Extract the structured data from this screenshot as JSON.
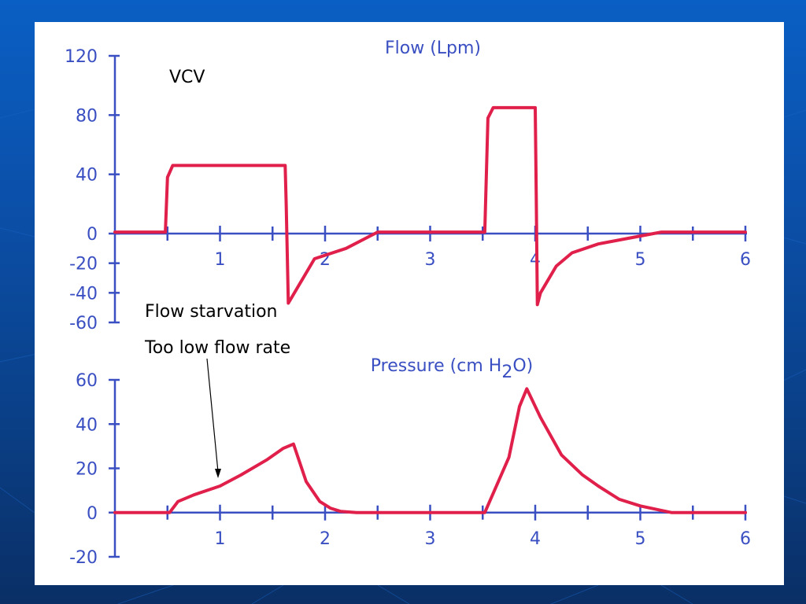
{
  "annotations": {
    "mode": "VCV",
    "line1": "Flow starvation",
    "line2": "Too low flow rate"
  },
  "colors": {
    "axis": "#3a4fc2",
    "series": "#e0204a",
    "annotation": "#000000",
    "panel": "#ffffff",
    "background": "#0b4fa8"
  },
  "chart_data": [
    {
      "type": "line",
      "title": "Flow (Lpm)",
      "xlim": [
        0,
        6
      ],
      "ylim": [
        -60,
        120
      ],
      "x_ticks": [
        1,
        2,
        3,
        4,
        5,
        6
      ],
      "y_ticks": [
        120,
        80,
        40,
        0,
        -20,
        -40,
        -60
      ],
      "series": [
        {
          "x": [
            0,
            0.48,
            0.5,
            0.55,
            1.62,
            1.63,
            1.65,
            1.9,
            2.2,
            2.5,
            3.5,
            3.52,
            3.55,
            3.6,
            4.0,
            4.01,
            4.02,
            4.05,
            4.2,
            4.35,
            4.6,
            4.9,
            5.2,
            6.0
          ],
          "y": [
            1,
            1,
            38,
            46,
            46,
            20,
            -47,
            -17,
            -10,
            1,
            1,
            1,
            78,
            85,
            85,
            25,
            -48,
            -40,
            -22,
            -13,
            -7,
            -3,
            1,
            1
          ]
        }
      ]
    },
    {
      "type": "line",
      "title": "Pressure (cm H2O)",
      "title_parts": {
        "prefix": "Pressure (cm H",
        "sub": "2",
        "suffix": "O)"
      },
      "xlim": [
        0,
        6
      ],
      "ylim": [
        -20,
        60
      ],
      "x_ticks": [
        1,
        2,
        3,
        4,
        5,
        6
      ],
      "y_ticks": [
        60,
        40,
        20,
        0,
        -20
      ],
      "series": [
        {
          "x": [
            0,
            0.5,
            0.52,
            0.6,
            0.75,
            1.0,
            1.2,
            1.45,
            1.6,
            1.7,
            1.82,
            1.95,
            2.05,
            2.15,
            2.3,
            3.5,
            3.52,
            3.75,
            3.85,
            3.92,
            4.05,
            4.25,
            4.45,
            4.6,
            4.8,
            5.0,
            5.3,
            6.0
          ],
          "y": [
            0,
            0,
            0,
            5,
            8,
            12,
            17,
            24,
            29,
            31,
            14,
            5,
            2,
            0.5,
            0,
            0,
            0,
            25,
            48,
            56,
            43,
            26,
            17,
            12,
            6,
            3,
            0,
            0
          ]
        }
      ]
    }
  ]
}
